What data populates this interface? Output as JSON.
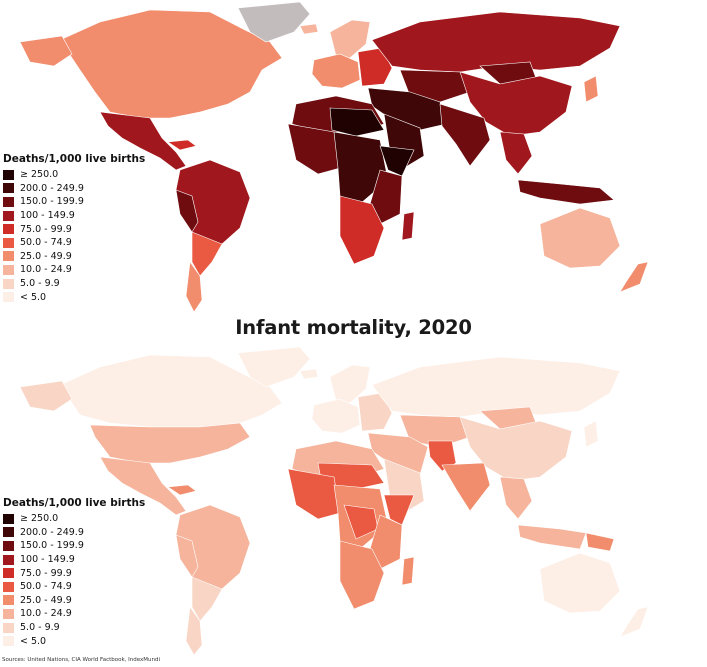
{
  "legend_classes": [
    {
      "label": "≥ 250.0",
      "color": "#200202"
    },
    {
      "label": "200.0 - 249.9",
      "color": "#3f0707"
    },
    {
      "label": "150.0 - 199.9",
      "color": "#6e0c10"
    },
    {
      "label": "100 - 149.9",
      "color": "#a0181d"
    },
    {
      "label": "75.0 - 99.9",
      "color": "#cf2c27"
    },
    {
      "label": "50.0 - 74.9",
      "color": "#ea5a42"
    },
    {
      "label": "25.0 - 49.9",
      "color": "#f18c6c"
    },
    {
      "label": "10.0 - 24.9",
      "color": "#f5b49b"
    },
    {
      "label": "5.0 - 9.9",
      "color": "#f9d5c5"
    },
    {
      "label": "< 5.0",
      "color": "#fdeee6"
    }
  ],
  "top_map": {
    "legend_title": "Deaths/1,000 live births",
    "no_data_color": "#c3bcbd",
    "regions": {
      "north_america": "#f18c6c",
      "greenland": "#c3bcbd",
      "mexico_central_america": "#a0181d",
      "caribbean": "#cf2c27",
      "south_america": "#a0181d",
      "andes": "#6e0c10",
      "southern_cone": "#ea5a42",
      "patagonia": "#f18c6c",
      "iceland": "#f5b49b",
      "western_europe": "#f18c6c",
      "scandinavia": "#f5b49b",
      "eastern_europe": "#cf2c27",
      "russia": "#a0181d",
      "north_africa": "#6e0c10",
      "sahel": "#200202",
      "west_africa": "#6e0c10",
      "central_africa": "#3f0707",
      "east_africa": "#6e0c10",
      "horn_of_africa": "#200202",
      "southern_africa": "#cf2c27",
      "madagascar": "#a0181d",
      "middle_east": "#3f0707",
      "arabia": "#3f0707",
      "central_asia": "#6e0c10",
      "south_asia": "#6e0c10",
      "china": "#a0181d",
      "mongolia": "#6e0c10",
      "southeast_asia": "#a0181d",
      "indonesia": "#6e0c10",
      "japan": "#f18c6c",
      "australia": "#f5b49b",
      "new_zealand": "#f18c6c"
    }
  },
  "bottom_map": {
    "title": "Infant mortality, 2020",
    "legend_title": "Deaths/1,000 live births",
    "sources": "Sources: United Nations, CIA World Factbook, IndexMundi",
    "regions": {
      "north_america": "#f9d5c5",
      "greenland": "#fdeee6",
      "canada": "#fdeee6",
      "usa": "#f5b49b",
      "mexico_central_america": "#f5b49b",
      "caribbean": "#f18c6c",
      "south_america": "#f5b49b",
      "andes": "#f5b49b",
      "southern_cone": "#f9d5c5",
      "patagonia": "#f9d5c5",
      "iceland": "#fdeee6",
      "western_europe": "#fdeee6",
      "scandinavia": "#fdeee6",
      "eastern_europe": "#f9d5c5",
      "russia": "#fdeee6",
      "north_africa": "#f5b49b",
      "sahel": "#ea5a42",
      "west_africa": "#ea5a42",
      "central_africa": "#f18c6c",
      "central_africa_core": "#ea5a42",
      "east_africa": "#f18c6c",
      "horn_of_africa": "#ea5a42",
      "southern_africa": "#f18c6c",
      "madagascar": "#f18c6c",
      "middle_east": "#f5b49b",
      "arabia": "#f9d5c5",
      "central_asia": "#f5b49b",
      "pakistan_afghanistan": "#ea5a42",
      "south_asia": "#f18c6c",
      "china": "#f9d5c5",
      "mongolia": "#f5b49b",
      "southeast_asia": "#f5b49b",
      "indonesia": "#f5b49b",
      "papua": "#f18c6c",
      "japan": "#fdeee6",
      "australia": "#fdeee6",
      "new_zealand": "#fdeee6"
    }
  }
}
